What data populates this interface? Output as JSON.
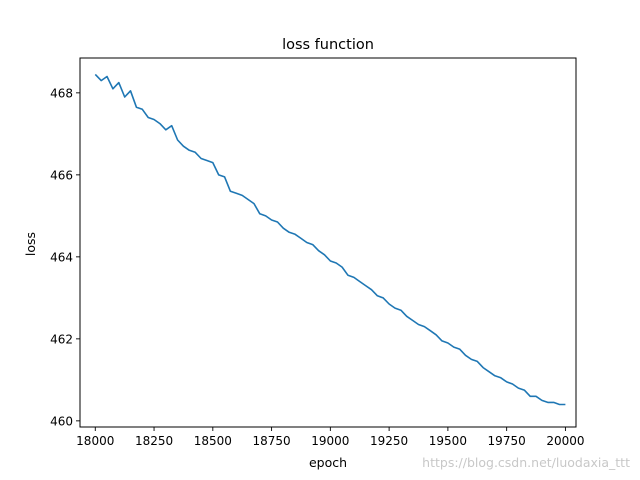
{
  "chart_data": {
    "type": "line",
    "title": "loss function",
    "xlabel": "epoch",
    "ylabel": "loss",
    "xlim": [
      17935,
      20045
    ],
    "ylim": [
      459.85,
      468.85
    ],
    "xticks": [
      18000,
      18250,
      18500,
      18750,
      19000,
      19250,
      19500,
      19750,
      20000
    ],
    "yticks": [
      460,
      462,
      464,
      466,
      468
    ],
    "grid": false,
    "legend": "none",
    "series": [
      {
        "color": "#1f77b4",
        "x": [
          18000,
          18025,
          18050,
          18075,
          18100,
          18125,
          18150,
          18175,
          18200,
          18225,
          18250,
          18275,
          18300,
          18325,
          18350,
          18375,
          18400,
          18425,
          18450,
          18475,
          18500,
          18525,
          18550,
          18575,
          18600,
          18625,
          18650,
          18675,
          18700,
          18725,
          18750,
          18775,
          18800,
          18825,
          18850,
          18875,
          18900,
          18925,
          18950,
          18975,
          19000,
          19025,
          19050,
          19075,
          19100,
          19125,
          19150,
          19175,
          19200,
          19225,
          19250,
          19275,
          19300,
          19325,
          19350,
          19375,
          19400,
          19425,
          19450,
          19475,
          19500,
          19525,
          19550,
          19575,
          19600,
          19625,
          19650,
          19675,
          19700,
          19725,
          19750,
          19775,
          19800,
          19825,
          19850,
          19875,
          19900,
          19925,
          19950,
          19975,
          20000
        ],
        "y": [
          468.45,
          468.3,
          468.4,
          468.1,
          468.25,
          467.9,
          468.05,
          467.65,
          467.6,
          467.4,
          467.35,
          467.25,
          467.1,
          467.2,
          466.85,
          466.7,
          466.6,
          466.55,
          466.4,
          466.35,
          466.3,
          466.0,
          465.95,
          465.6,
          465.55,
          465.5,
          465.4,
          465.3,
          465.05,
          465.0,
          464.9,
          464.85,
          464.7,
          464.6,
          464.55,
          464.45,
          464.35,
          464.3,
          464.15,
          464.05,
          463.9,
          463.85,
          463.75,
          463.55,
          463.5,
          463.4,
          463.3,
          463.2,
          463.05,
          463.0,
          462.85,
          462.75,
          462.7,
          462.55,
          462.45,
          462.35,
          462.3,
          462.2,
          462.1,
          461.95,
          461.9,
          461.8,
          461.75,
          461.6,
          461.5,
          461.45,
          461.3,
          461.2,
          461.1,
          461.05,
          460.95,
          460.9,
          460.8,
          460.75,
          460.6,
          460.6,
          460.5,
          460.45,
          460.45,
          460.4,
          460.4
        ]
      }
    ]
  },
  "watermark": "https://blog.csdn.net/luodaxia_ttt"
}
